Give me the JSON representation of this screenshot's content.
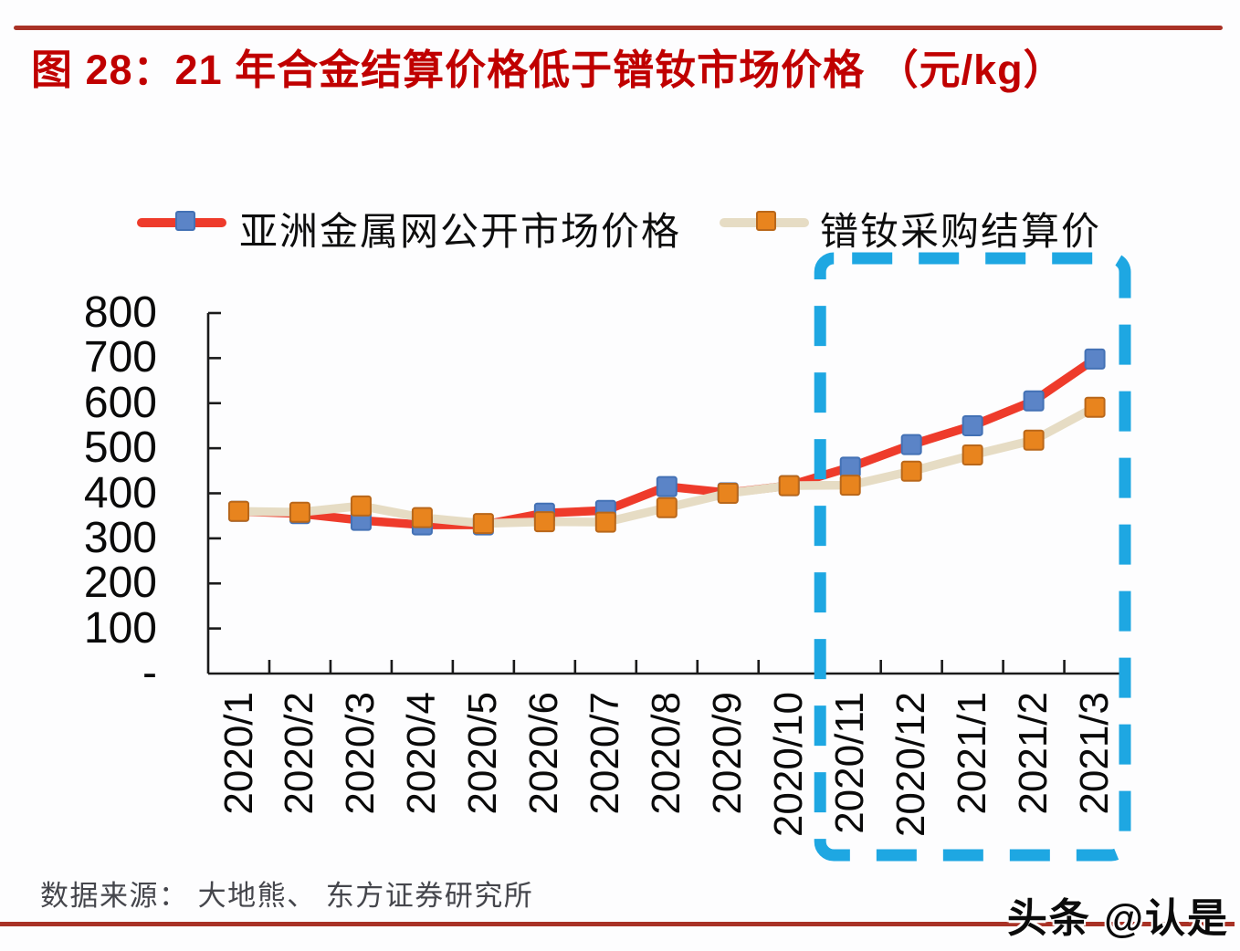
{
  "figure": {
    "title": "图 28：21 年合金结算价格低于镨钕市场价格 （元/kg）",
    "title_color": "#c00000",
    "rule_color": "#a93226"
  },
  "chart_data": {
    "type": "line",
    "title": "21 年合金结算价格低于镨钕市场价格",
    "unit": "元/kg",
    "categories": [
      "2020/1",
      "2020/2",
      "2020/3",
      "2020/4",
      "2020/5",
      "2020/6",
      "2020/7",
      "2020/8",
      "2020/9",
      "2020/10",
      "2020/11",
      "2020/12",
      "2021/1",
      "2021/2",
      "2021/3"
    ],
    "series": [
      {
        "name": "亚洲金属网公开市场价格",
        "values": [
          360,
          355,
          340,
          330,
          330,
          356,
          362,
          415,
          401,
          417,
          458,
          508,
          550,
          605,
          698
        ],
        "line_color": "#ee3b2b",
        "marker": "square",
        "marker_color": "#5b84c7",
        "marker_border": "#4371b5"
      },
      {
        "name": "镨钕采购结算价",
        "values": [
          360,
          358,
          372,
          346,
          333,
          337,
          336,
          368,
          400,
          417,
          418,
          449,
          485,
          518,
          591
        ],
        "line_color": "#e6dcc4",
        "marker": "square",
        "marker_color": "#e8841e",
        "marker_border": "#b9671a"
      }
    ],
    "ylim": [
      0,
      800
    ],
    "ytick_step": 100,
    "ytick_labels_top_down": [
      "800",
      "700",
      "600",
      "500",
      "400",
      "300",
      "200",
      "100"
    ],
    "zero_label": "-",
    "grid": false,
    "legend_position": "top",
    "axis_color": "#1a1a1a",
    "highlight_box": {
      "from": "2020/11",
      "to": "2021/3",
      "color": "#1ea7e2",
      "style": "dashed"
    }
  },
  "footer": {
    "source": "数据来源： 大地熊、 东方证券研究所",
    "watermark": "头条 @认是"
  }
}
